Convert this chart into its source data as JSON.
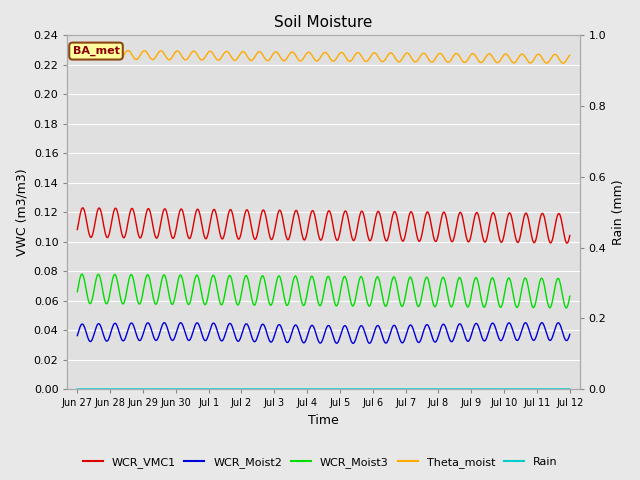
{
  "title": "Soil Moisture",
  "xlabel": "Time",
  "ylabel_left": "VWC (m3/m3)",
  "ylabel_right": "Rain (mm)",
  "ylim_left": [
    0.0,
    0.24
  ],
  "ylim_right": [
    0.0,
    1.0
  ],
  "yticks_left": [
    0.0,
    0.02,
    0.04,
    0.06,
    0.08,
    0.1,
    0.12,
    0.14,
    0.16,
    0.18,
    0.2,
    0.22,
    0.24
  ],
  "yticks_right": [
    0.0,
    0.2,
    0.4,
    0.6,
    0.8,
    1.0
  ],
  "fig_bg_color": "#e8e8e8",
  "plot_bg_color": "#e0e0e0",
  "grid_color": "#f0f0f0",
  "annotation_text": "BA_met",
  "annotation_bg": "#ffffa0",
  "annotation_border": "#8b4513",
  "annotation_text_color": "#8b0000",
  "colors": {
    "WCR_VMC1": "#dd0000",
    "WCR_Moist2": "#0000dd",
    "WCR_Moist3": "#00dd00",
    "Theta_moist": "#ffaa00",
    "Rain": "#00cccc"
  },
  "xtick_labels": [
    "Jun 27",
    "Jun 28",
    "Jun 29",
    "Jun 30",
    "Jul 1",
    "Jul 2",
    "Jul 3",
    "Jul 4",
    "Jul 5",
    "Jul 6",
    "Jul 7",
    "Jul 8",
    "Jul 9",
    "Jul 10",
    "Jul 11",
    "Jul 12"
  ],
  "num_days": 16,
  "theta_base": 0.227,
  "theta_amp": 0.003,
  "theta_trend": -0.003,
  "vcm1_base": 0.113,
  "vcm1_amp": 0.01,
  "moist2_base": 0.038,
  "moist2_amp": 0.006,
  "moist3_base": 0.068,
  "moist3_amp": 0.01,
  "period": 0.5
}
